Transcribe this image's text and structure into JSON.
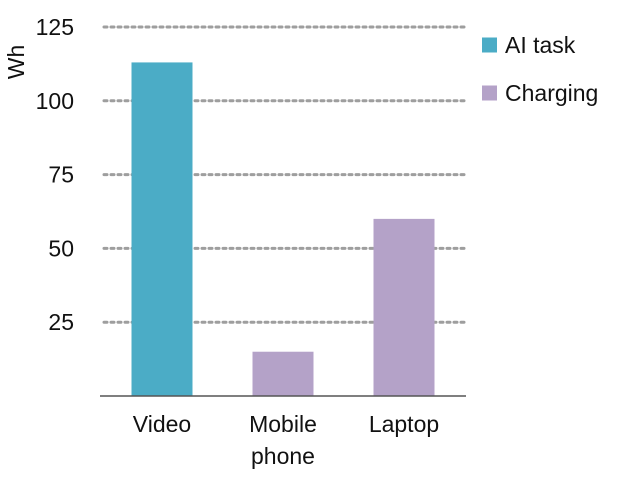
{
  "chart_data": {
    "type": "bar",
    "title": "",
    "xlabel": "",
    "ylabel": "Wh",
    "ylim": [
      0,
      125
    ],
    "yticks": [
      25,
      50,
      75,
      100,
      125
    ],
    "grid": true,
    "legend_position": "top-right",
    "categories": [
      {
        "label_lines": [
          "Video"
        ]
      },
      {
        "label_lines": [
          "Mobile",
          "phone"
        ]
      },
      {
        "label_lines": [
          "Laptop"
        ]
      }
    ],
    "series": [
      {
        "name": "AI task",
        "color": "#4bacc6",
        "values": [
          113,
          null,
          null
        ]
      },
      {
        "name": "Charging",
        "color": "#b4a2c8",
        "values": [
          null,
          15,
          60
        ]
      }
    ]
  }
}
